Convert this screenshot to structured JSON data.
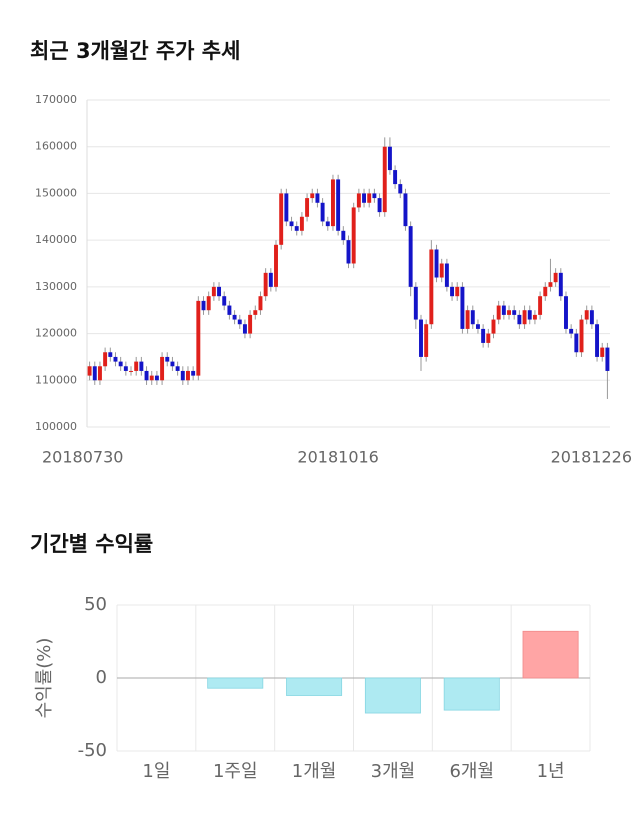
{
  "chart_data": [
    {
      "type": "candlestick",
      "title": "최근 3개월간 주가 추세",
      "categories": [
        "20180730",
        null,
        null,
        null,
        null,
        null,
        null,
        null,
        null,
        null,
        null,
        null,
        null,
        null,
        null,
        null,
        null,
        null,
        null,
        null,
        null,
        null,
        null,
        null,
        null,
        null,
        null,
        null,
        null,
        null,
        null,
        null,
        null,
        null,
        null,
        null,
        null,
        null,
        null,
        null,
        null,
        null,
        null,
        null,
        null,
        null,
        null,
        null,
        "20181016",
        null,
        null,
        null,
        null,
        null,
        null,
        null,
        null,
        null,
        null,
        null,
        null,
        null,
        null,
        null,
        null,
        null,
        null,
        null,
        null,
        null,
        null,
        null,
        null,
        null,
        null,
        null,
        null,
        null,
        null,
        null,
        null,
        null,
        null,
        null,
        null,
        null,
        null,
        null,
        null,
        null,
        null,
        null,
        null,
        null,
        null,
        null,
        null,
        null,
        null,
        null,
        "20181226"
      ],
      "open": [
        111000,
        113000,
        110000,
        113000,
        116000,
        115000,
        114000,
        113000,
        112000,
        112000,
        114000,
        112000,
        110000,
        111000,
        110000,
        115000,
        114000,
        113000,
        112000,
        110000,
        112000,
        111000,
        127000,
        125000,
        128000,
        130000,
        128000,
        126000,
        124000,
        123000,
        122000,
        120000,
        124000,
        125000,
        128000,
        133000,
        130000,
        139000,
        150000,
        144000,
        143000,
        142000,
        145000,
        149000,
        150000,
        148000,
        144000,
        143000,
        153000,
        142000,
        140000,
        135000,
        147000,
        150000,
        148000,
        150000,
        149000,
        146000,
        160000,
        155000,
        152000,
        150000,
        143000,
        130000,
        123000,
        115000,
        122000,
        138000,
        132000,
        135000,
        130000,
        128000,
        130000,
        121000,
        125000,
        122000,
        121000,
        118000,
        120000,
        123000,
        126000,
        124000,
        125000,
        124000,
        122000,
        125000,
        123000,
        124000,
        128000,
        130000,
        131000,
        133000,
        128000,
        121000,
        120000,
        116000,
        123000,
        125000,
        122000,
        115000,
        117000
      ],
      "high": [
        114000,
        114000,
        114000,
        117000,
        117000,
        116000,
        115000,
        114000,
        113000,
        115000,
        115000,
        113000,
        112000,
        112000,
        116000,
        116000,
        115000,
        114000,
        113000,
        113000,
        113000,
        128000,
        128000,
        129000,
        131000,
        131000,
        129000,
        127000,
        125000,
        124000,
        123000,
        125000,
        126000,
        129000,
        134000,
        134000,
        140000,
        151000,
        151000,
        145000,
        144000,
        146000,
        150000,
        151000,
        151000,
        149000,
        145000,
        154000,
        154000,
        143000,
        141000,
        148000,
        151000,
        151000,
        151000,
        151000,
        150000,
        162000,
        162000,
        156000,
        153000,
        151000,
        144000,
        131000,
        124000,
        123000,
        140000,
        139000,
        136000,
        136000,
        131000,
        131000,
        131000,
        126000,
        126000,
        123000,
        122000,
        121000,
        124000,
        127000,
        127000,
        126000,
        126000,
        125000,
        126000,
        126000,
        125000,
        129000,
        131000,
        136000,
        134000,
        134000,
        129000,
        122000,
        121000,
        124000,
        126000,
        126000,
        123000,
        118000,
        118000
      ],
      "low": [
        110000,
        109000,
        109000,
        112000,
        114000,
        113000,
        112000,
        111000,
        111000,
        111000,
        111000,
        109000,
        109000,
        109000,
        109000,
        113000,
        112000,
        111000,
        109000,
        109000,
        110000,
        110000,
        124000,
        124000,
        127000,
        127000,
        125000,
        123000,
        122000,
        121000,
        119000,
        119000,
        123000,
        124000,
        127000,
        129000,
        129000,
        138000,
        143000,
        142000,
        141000,
        141000,
        144000,
        148000,
        147000,
        143000,
        142000,
        142000,
        141000,
        139000,
        134000,
        134000,
        146000,
        147000,
        147000,
        148000,
        145000,
        145000,
        154000,
        151000,
        149000,
        142000,
        128000,
        121000,
        112000,
        114000,
        121000,
        131000,
        131000,
        129000,
        127000,
        127000,
        120000,
        120000,
        121000,
        120000,
        117000,
        117000,
        119000,
        122000,
        123000,
        123000,
        123000,
        121000,
        121000,
        122000,
        122000,
        123000,
        127000,
        129000,
        130000,
        127000,
        120000,
        119000,
        115000,
        115000,
        122000,
        121000,
        114000,
        114000,
        106000
      ],
      "close": [
        113000,
        110000,
        113000,
        116000,
        115000,
        114000,
        113000,
        112000,
        112000,
        114000,
        112000,
        110000,
        111000,
        110000,
        115000,
        114000,
        113000,
        112000,
        110000,
        112000,
        111000,
        127000,
        125000,
        128000,
        130000,
        128000,
        126000,
        124000,
        123000,
        122000,
        120000,
        124000,
        125000,
        128000,
        133000,
        130000,
        139000,
        150000,
        144000,
        143000,
        142000,
        145000,
        149000,
        150000,
        148000,
        144000,
        143000,
        153000,
        142000,
        140000,
        135000,
        147000,
        150000,
        148000,
        150000,
        149000,
        146000,
        160000,
        155000,
        152000,
        150000,
        143000,
        130000,
        123000,
        115000,
        122000,
        138000,
        132000,
        135000,
        130000,
        128000,
        130000,
        121000,
        125000,
        122000,
        121000,
        118000,
        120000,
        123000,
        126000,
        124000,
        125000,
        124000,
        122000,
        125000,
        123000,
        124000,
        128000,
        130000,
        131000,
        133000,
        128000,
        121000,
        120000,
        116000,
        123000,
        125000,
        122000,
        115000,
        117000,
        112000
      ],
      "up_color": "#e0201b",
      "down_color": "#1414c8",
      "ylim": [
        100000,
        170000
      ],
      "yticks": [
        100000,
        110000,
        120000,
        130000,
        140000,
        150000,
        160000,
        170000
      ],
      "grid": true
    },
    {
      "type": "bar",
      "title": "기간별 수익률",
      "y_label": "수익률(%)",
      "categories": [
        "1일",
        "1주일",
        "1개월",
        "3개월",
        "6개월",
        "1년"
      ],
      "values": [
        0,
        -7,
        -12,
        -24,
        -22,
        32
      ],
      "positive_color": "#ffa5a5",
      "negative_color": "#aeeaf2",
      "ylim": [
        -50,
        50
      ],
      "yticks": [
        -50,
        0,
        50
      ],
      "grid": true
    }
  ]
}
